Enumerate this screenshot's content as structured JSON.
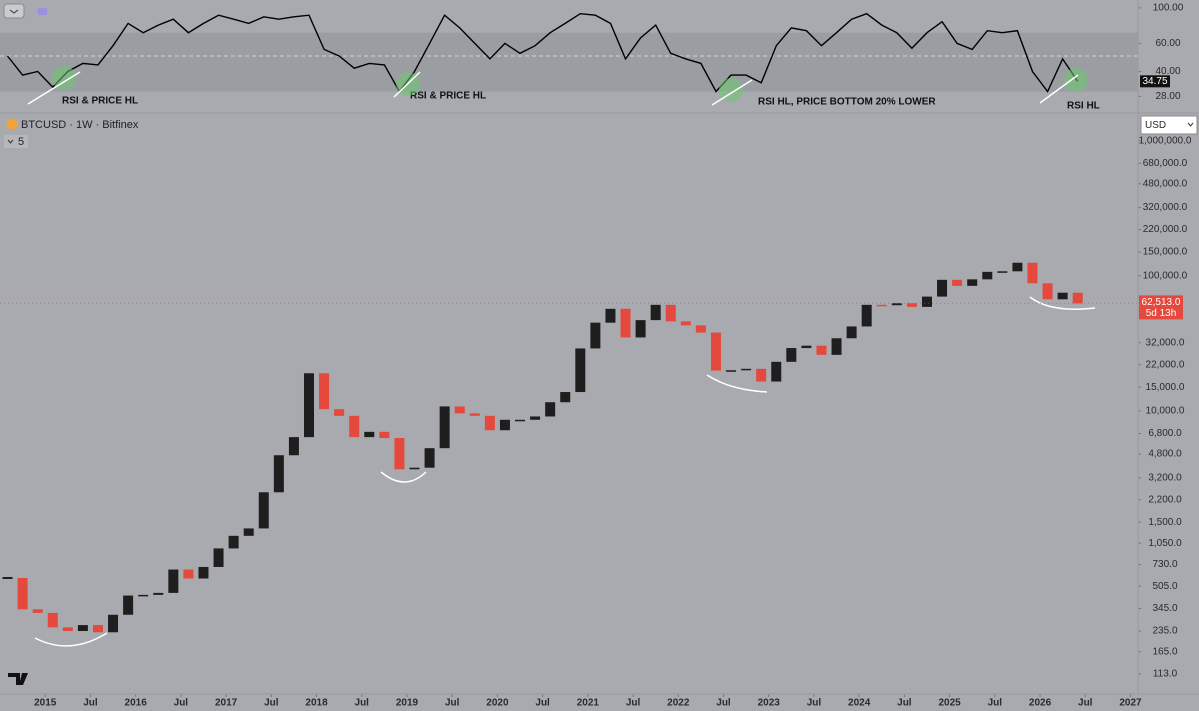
{
  "chart_data": [
    {
      "type": "line",
      "x": [
        "2014-08",
        "2014-10",
        "2014-12",
        "2015-02",
        "2015-04",
        "2015-06",
        "2015-08",
        "2015-10",
        "2015-12",
        "2016-02",
        "2016-04",
        "2016-06",
        "2016-08",
        "2016-10",
        "2016-12",
        "2017-02",
        "2017-04",
        "2017-06",
        "2017-08",
        "2017-10",
        "2017-12",
        "2018-02",
        "2018-04",
        "2018-06",
        "2018-08",
        "2018-10",
        "2018-12",
        "2019-02",
        "2019-04",
        "2019-06",
        "2019-08",
        "2019-10",
        "2019-12",
        "2020-02",
        "2020-04",
        "2020-06",
        "2020-08",
        "2020-10",
        "2020-12",
        "2021-02",
        "2021-04",
        "2021-06",
        "2021-08",
        "2021-10",
        "2021-12",
        "2022-02",
        "2022-04",
        "2022-06",
        "2022-08",
        "2022-10",
        "2022-12",
        "2023-02",
        "2023-04",
        "2023-06",
        "2023-08",
        "2023-10",
        "2023-12",
        "2024-02",
        "2024-04",
        "2024-06",
        "2024-08",
        "2024-10",
        "2024-12",
        "2025-02",
        "2025-04",
        "2025-06",
        "2025-08",
        "2025-10",
        "2025-12",
        "2026-02",
        "2026-04",
        "2026-06"
      ],
      "values": [
        50,
        38,
        40,
        32,
        40,
        45,
        44,
        58,
        80,
        70,
        78,
        85,
        70,
        80,
        90,
        85,
        80,
        88,
        85,
        88,
        90,
        55,
        50,
        42,
        45,
        44,
        30,
        40,
        60,
        90,
        75,
        60,
        48,
        60,
        52,
        58,
        70,
        80,
        92,
        90,
        80,
        48,
        65,
        78,
        52,
        48,
        45,
        30,
        38,
        38,
        34,
        58,
        75,
        72,
        58,
        70,
        85,
        92,
        78,
        70,
        56,
        70,
        82,
        60,
        55,
        72,
        70,
        72,
        40,
        30,
        48,
        34.75
      ],
      "color": "#000000",
      "log_scale": true,
      "xlim": [
        "2014-07",
        "2027-02"
      ],
      "ylim": [
        23,
        112
      ],
      "yticks": [
        {
          "value": 100,
          "label": "100.00"
        },
        {
          "value": 60,
          "label": "60.00"
        },
        {
          "value": 40,
          "label": "40.00"
        },
        {
          "value": 28,
          "label": "28.00"
        }
      ],
      "band": [
        30,
        70
      ],
      "midline": 50,
      "last_value_label": {
        "value": 34.75,
        "label": "34.75"
      },
      "annotations": [
        "RSI & PRICE HL",
        "RSI & PRICE HL",
        "RSI HL, PRICE BOTTOM 20% LOWER",
        "RSI HL"
      ]
    },
    {
      "type": "candlestick",
      "title": "BTCUSD · 1W · Bitfinex",
      "indicator_count": "5",
      "currency": "USD",
      "x": [
        "2014-08",
        "2014-10",
        "2014-12",
        "2015-02",
        "2015-04",
        "2015-06",
        "2015-08",
        "2015-10",
        "2015-12",
        "2016-02",
        "2016-04",
        "2016-06",
        "2016-08",
        "2016-10",
        "2016-12",
        "2017-02",
        "2017-04",
        "2017-06",
        "2017-08",
        "2017-10",
        "2017-12",
        "2018-02",
        "2018-04",
        "2018-06",
        "2018-08",
        "2018-10",
        "2018-12",
        "2019-02",
        "2019-04",
        "2019-06",
        "2019-08",
        "2019-10",
        "2019-12",
        "2020-02",
        "2020-04",
        "2020-06",
        "2020-08",
        "2020-10",
        "2020-12",
        "2021-02",
        "2021-04",
        "2021-06",
        "2021-08",
        "2021-10",
        "2021-12",
        "2022-02",
        "2022-04",
        "2022-06",
        "2022-08",
        "2022-10",
        "2022-12",
        "2023-02",
        "2023-04",
        "2023-06",
        "2023-08",
        "2023-10",
        "2023-12",
        "2024-02",
        "2024-04",
        "2024-06",
        "2024-08",
        "2024-10",
        "2024-12",
        "2025-02",
        "2025-04",
        "2025-06",
        "2025-08",
        "2025-10",
        "2025-12",
        "2026-02",
        "2026-04",
        "2026-06"
      ],
      "values": [
        580,
        340,
        320,
        250,
        235,
        260,
        230,
        310,
        430,
        435,
        450,
        670,
        575,
        700,
        960,
        1190,
        1350,
        2500,
        4700,
        6400,
        19000,
        10300,
        9200,
        6400,
        7000,
        6300,
        3700,
        3800,
        5300,
        10800,
        9600,
        9200,
        7200,
        8600,
        8600,
        9100,
        11600,
        13800,
        29000,
        45000,
        57000,
        35000,
        47000,
        61000,
        46000,
        43000,
        38000,
        19900,
        20000,
        20500,
        16500,
        23100,
        29200,
        30400,
        26000,
        34500,
        42200,
        61000,
        60600,
        62700,
        58900,
        70200,
        93400,
        84300,
        94200,
        107000,
        108000,
        125000,
        88000,
        67000,
        75000,
        62513
      ],
      "up_color": "#1e1e1e",
      "down_color": "#e5483c",
      "log_scale": true,
      "xlim": [
        "2014-07",
        "2027-02"
      ],
      "ylim": [
        86,
        1550000
      ],
      "yticks": [
        {
          "value": 1000000,
          "label": "1,000,000.0"
        },
        {
          "value": 680000,
          "label": "680,000.0"
        },
        {
          "value": 480000,
          "label": "480,000.0"
        },
        {
          "value": 320000,
          "label": "320,000.0"
        },
        {
          "value": 220000,
          "label": "220,000.0"
        },
        {
          "value": 150000,
          "label": "150,000.0"
        },
        {
          "value": 100000,
          "label": "100,000.0"
        },
        {
          "value": 32000,
          "label": "32,000.0"
        },
        {
          "value": 22000,
          "label": "22,000.0"
        },
        {
          "value": 15000,
          "label": "15,000.0"
        },
        {
          "value": 10000,
          "label": "10,000.0"
        },
        {
          "value": 6800,
          "label": "6,800.0"
        },
        {
          "value": 4800,
          "label": "4,800.0"
        },
        {
          "value": 3200,
          "label": "3,200.0"
        },
        {
          "value": 2200,
          "label": "2,200.0"
        },
        {
          "value": 1500,
          "label": "1,500.0"
        },
        {
          "value": 1050,
          "label": "1,050.0"
        },
        {
          "value": 730,
          "label": "730.0"
        },
        {
          "value": 505,
          "label": "505.0"
        },
        {
          "value": 345,
          "label": "345.0"
        },
        {
          "value": 235,
          "label": "235.0"
        },
        {
          "value": 165,
          "label": "165.0"
        },
        {
          "value": 113,
          "label": "113.0"
        }
      ],
      "xticks": [
        {
          "value": "2015-01",
          "label": "2015"
        },
        {
          "value": "2015-07",
          "label": "Jul"
        },
        {
          "value": "2016-01",
          "label": "2016"
        },
        {
          "value": "2016-07",
          "label": "Jul"
        },
        {
          "value": "2017-01",
          "label": "2017"
        },
        {
          "value": "2017-07",
          "label": "Jul"
        },
        {
          "value": "2018-01",
          "label": "2018"
        },
        {
          "value": "2018-07",
          "label": "Jul"
        },
        {
          "value": "2019-01",
          "label": "2019"
        },
        {
          "value": "2019-07",
          "label": "Jul"
        },
        {
          "value": "2020-01",
          "label": "2020"
        },
        {
          "value": "2020-07",
          "label": "Jul"
        },
        {
          "value": "2021-01",
          "label": "2021"
        },
        {
          "value": "2021-07",
          "label": "Jul"
        },
        {
          "value": "2022-01",
          "label": "2022"
        },
        {
          "value": "2022-07",
          "label": "Jul"
        },
        {
          "value": "2023-01",
          "label": "2023"
        },
        {
          "value": "2023-07",
          "label": "Jul"
        },
        {
          "value": "2024-01",
          "label": "2024"
        },
        {
          "value": "2024-07",
          "label": "Jul"
        },
        {
          "value": "2025-01",
          "label": "2025"
        },
        {
          "value": "2025-07",
          "label": "Jul"
        },
        {
          "value": "2026-01",
          "label": "2026"
        },
        {
          "value": "2026-07",
          "label": "Jul"
        },
        {
          "value": "2027-01",
          "label": "2027"
        }
      ],
      "last_price_label": {
        "value": 62513,
        "label": "62,513.0"
      },
      "countdown": "5d 13h"
    }
  ]
}
